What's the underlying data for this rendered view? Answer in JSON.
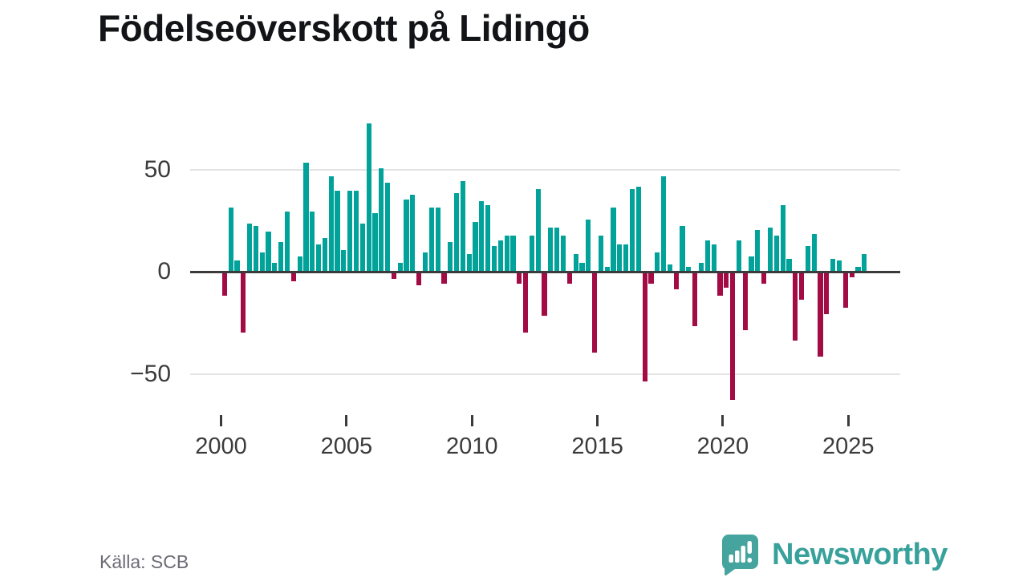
{
  "title": "Födelseöverskott på Lidingö",
  "source": {
    "label": "Källa: SCB"
  },
  "branding": {
    "name": "Newsworthy",
    "logo_color": "#45a49e",
    "text_color": "#38a19b"
  },
  "chart_data": {
    "type": "bar",
    "title": "Födelseöverskott på Lidingö",
    "frequency": "quarterly",
    "start_period": "2000 Q1",
    "end_period": "2025 Q3",
    "x_tick_labels": [
      "2000",
      "2005",
      "2010",
      "2015",
      "2020",
      "2025"
    ],
    "y_tick_labels": [
      "50",
      "0",
      "−50"
    ],
    "y_tick_values": [
      50,
      0,
      -50
    ],
    "ylim": [
      -71,
      78
    ],
    "grid": "horizontal",
    "legend": "none",
    "colors": {
      "positive": "#01a29a",
      "negative": "#a30b45",
      "axis": "#3b3b3b",
      "gridline": "#e4e4e4"
    },
    "values": [
      -11,
      31,
      5,
      -29,
      23,
      22,
      9,
      19,
      4,
      14,
      29,
      -4,
      7,
      53,
      29,
      13,
      16,
      46,
      39,
      10,
      39,
      39,
      23,
      72,
      28,
      50,
      43,
      -3,
      4,
      35,
      37,
      -6,
      9,
      31,
      31,
      -5,
      14,
      38,
      44,
      8,
      24,
      34,
      32,
      12,
      15,
      17,
      17,
      -5,
      -29,
      17,
      40,
      -21,
      21,
      21,
      17,
      -5,
      8,
      4,
      25,
      -39,
      17,
      2,
      31,
      13,
      13,
      40,
      41,
      -53,
      -5,
      9,
      46,
      3,
      -8,
      22,
      2,
      -26,
      4,
      15,
      13,
      -11,
      -7,
      -62,
      15,
      -28,
      7,
      20,
      -5,
      21,
      17,
      32,
      6,
      -33,
      -13,
      12,
      18,
      -41,
      -20,
      6,
      5,
      -17,
      -2,
      2,
      8
    ]
  }
}
